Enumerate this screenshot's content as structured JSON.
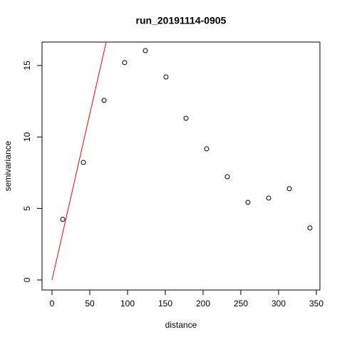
{
  "chart_data": {
    "type": "scatter",
    "title": "run_20191114-0905",
    "x_label": "distance",
    "y_label": "semivariance",
    "series": [
      {
        "type": "scatter",
        "color": "#000000",
        "x": [
          14.2,
          41.5,
          68.9,
          96.2,
          123.6,
          150.9,
          177.4,
          204.7,
          232.1,
          259.4,
          286.8,
          314.2,
          341.5
        ],
        "values": [
          4.24,
          8.22,
          12.56,
          15.2,
          16.04,
          14.2,
          11.31,
          9.17,
          7.22,
          5.43,
          5.73,
          6.38,
          3.64
        ]
      },
      {
        "type": "line",
        "color": "#ff0000",
        "x": [
          0,
          72
        ],
        "values": [
          0,
          16.7
        ]
      }
    ],
    "xlim": [
      -13.2,
      354.7
    ],
    "ylim": [
      -0.7,
      16.64
    ],
    "xticks": [
      0,
      50,
      100,
      150,
      200,
      250,
      300,
      350
    ],
    "yticks": [
      0,
      5,
      10,
      15
    ]
  }
}
